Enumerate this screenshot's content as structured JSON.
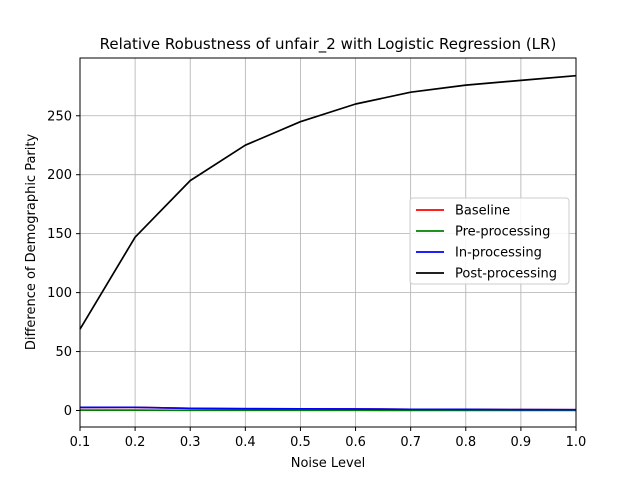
{
  "chart_data": {
    "type": "line",
    "title": "Relative Robustness of unfair_2 with Logistic Regression (LR)",
    "xlabel": "Noise Level",
    "ylabel": "Difference of Demographic Parity",
    "xlim": [
      0.1,
      1.0
    ],
    "ylim": [
      -14,
      299
    ],
    "x_ticks": [
      "0.1",
      "0.2",
      "0.3",
      "0.4",
      "0.5",
      "0.6",
      "0.7",
      "0.8",
      "0.9",
      "1.0"
    ],
    "y_ticks": [
      "0",
      "50",
      "100",
      "150",
      "200",
      "250"
    ],
    "grid": true,
    "legend_position": "center-right",
    "x": [
      0.1,
      0.2,
      0.3,
      0.4,
      0.5,
      0.6,
      0.7,
      0.8,
      0.9,
      1.0
    ],
    "series": [
      {
        "name": "Baseline",
        "color": "#ff0000",
        "values": [
          2.5,
          2.6,
          1.8,
          1.5,
          1.4,
          1.3,
          1.0,
          0.9,
          0.8,
          0.7
        ]
      },
      {
        "name": "Pre-processing",
        "color": "#008000",
        "values": [
          0.3,
          0.3,
          0.2,
          0.2,
          0.2,
          0.2,
          0.1,
          0.1,
          0.1,
          0.1
        ]
      },
      {
        "name": "In-processing",
        "color": "#0000ff",
        "values": [
          2.6,
          2.7,
          1.9,
          1.5,
          1.4,
          1.3,
          1.0,
          0.9,
          0.8,
          0.7
        ]
      },
      {
        "name": "Post-processing",
        "color": "#000000",
        "values": [
          69,
          147,
          195,
          225,
          245,
          260,
          270,
          276,
          280,
          284
        ]
      }
    ]
  }
}
